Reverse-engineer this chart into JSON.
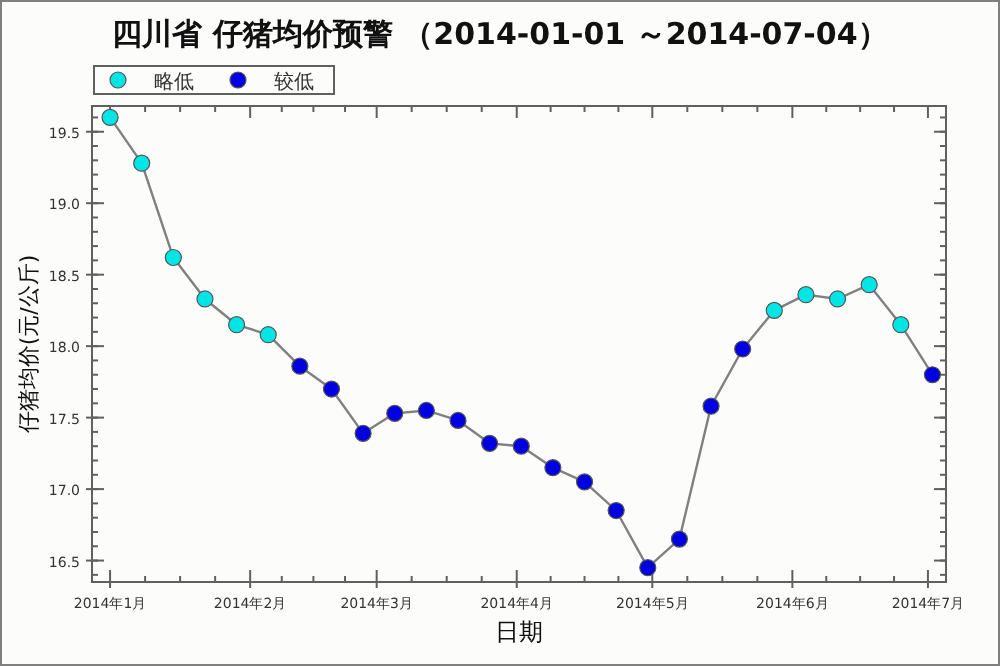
{
  "chart_data": {
    "type": "line",
    "title": "四川省 仔猪均价预警 （2014-01-01 ～2014-07-04）",
    "xlabel": "日期",
    "ylabel": "仔猪均价(元/公斤)",
    "x": [
      "2014-01-01",
      "2014-01-08",
      "2014-01-15",
      "2014-01-22",
      "2014-01-29",
      "2014-02-05",
      "2014-02-12",
      "2014-02-19",
      "2014-02-26",
      "2014-03-05",
      "2014-03-12",
      "2014-03-19",
      "2014-03-26",
      "2014-04-02",
      "2014-04-09",
      "2014-04-16",
      "2014-04-23",
      "2014-04-30",
      "2014-05-07",
      "2014-05-14",
      "2014-05-21",
      "2014-05-28",
      "2014-06-04",
      "2014-06-11",
      "2014-06-18",
      "2014-06-25",
      "2014-07-02"
    ],
    "series": [
      {
        "color": "#808080",
        "marker": "none",
        "values": [
          19.6,
          19.28,
          18.62,
          18.33,
          18.15,
          18.08,
          17.86,
          17.7,
          17.39,
          17.53,
          17.55,
          17.48,
          17.32,
          17.3,
          17.15,
          17.05,
          16.85,
          16.45,
          16.65,
          17.58,
          17.98,
          18.25,
          18.36,
          18.33,
          18.43,
          18.15,
          17.8
        ]
      },
      {
        "type": "scatter",
        "name": "略低",
        "color": "#00e5e5",
        "marker": "circle",
        "values": [
          19.6,
          19.28,
          18.62,
          18.33,
          18.15,
          18.08,
          null,
          null,
          null,
          null,
          null,
          null,
          null,
          null,
          null,
          null,
          null,
          null,
          null,
          null,
          null,
          18.25,
          18.36,
          18.33,
          18.43,
          18.15,
          null
        ]
      },
      {
        "type": "scatter",
        "name": "较低",
        "color": "#0000e0",
        "marker": "circle",
        "values": [
          null,
          null,
          null,
          null,
          null,
          null,
          17.86,
          17.7,
          17.39,
          17.53,
          17.55,
          17.48,
          17.32,
          17.3,
          17.15,
          17.05,
          16.85,
          16.45,
          16.65,
          17.58,
          17.98,
          null,
          null,
          null,
          null,
          null,
          17.8
        ]
      }
    ],
    "xlim": [
      "2013-12-28",
      "2014-07-05"
    ],
    "xticks": [
      {
        "value": "2014-01-01",
        "label": "2014年1月"
      },
      {
        "value": "2014-02-01",
        "label": "2014年2月"
      },
      {
        "value": "2014-03-01",
        "label": "2014年3月"
      },
      {
        "value": "2014-04-01",
        "label": "2014年4月"
      },
      {
        "value": "2014-05-01",
        "label": "2014年5月"
      },
      {
        "value": "2014-06-01",
        "label": "2014年6月"
      },
      {
        "value": "2014-07-01",
        "label": "2014年7月"
      }
    ],
    "ylim": [
      16.35,
      19.68
    ],
    "yticks": [
      {
        "value": 16.5,
        "label": "16.5"
      },
      {
        "value": 17,
        "label": "17.0"
      },
      {
        "value": 17.5,
        "label": "17.5"
      },
      {
        "value": 18,
        "label": "18.0"
      },
      {
        "value": 18.5,
        "label": "18.5"
      },
      {
        "value": 19,
        "label": "19.0"
      },
      {
        "value": 19.5,
        "label": "19.5"
      }
    ],
    "grid": false,
    "legend": "top left",
    "line_style": "solid"
  }
}
